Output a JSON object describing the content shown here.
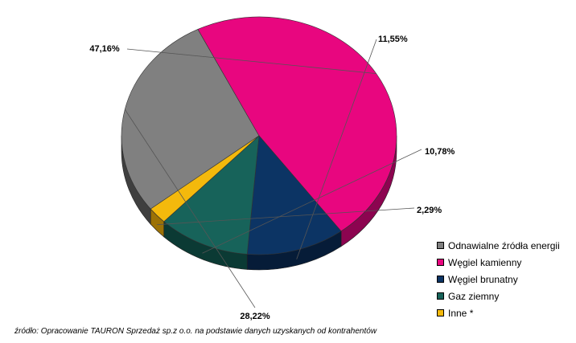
{
  "chart_data": {
    "type": "pie",
    "title": "",
    "slices": [
      {
        "label": "Odnawialne źródła energii",
        "value": 28.22,
        "value_label": "28,22%",
        "color": "#808080",
        "side": "#3f3f3f"
      },
      {
        "label": "Węgiel kamienny",
        "value": 47.16,
        "value_label": "47,16%",
        "color": "#e8067f",
        "side": "#8c0450"
      },
      {
        "label": "Węgiel brunatny",
        "value": 11.55,
        "value_label": "11,55%",
        "color": "#0c3464",
        "side": "#061c38"
      },
      {
        "label": "Gaz ziemny",
        "value": 10.78,
        "value_label": "10,78%",
        "color": "#17635a",
        "side": "#0b3a34"
      },
      {
        "label": "Inne *",
        "value": 2.29,
        "value_label": "2,29%",
        "color": "#f4b90c",
        "side": "#9c7206"
      }
    ],
    "legend_position": "bottom-right"
  },
  "source_note": "źródło: Opracowanie TAURON Sprzedaż sp.z o.o. na podstawie danych uzyskanych od kontrahentów"
}
